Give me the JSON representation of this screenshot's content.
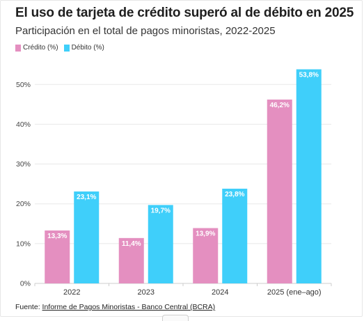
{
  "header": {
    "title": "El uso de tarjeta de crédito superó al de débito en 2025",
    "subtitle": "Participación en el total de pagos minoristas, 2022-2025"
  },
  "source": {
    "prefix": "Fuente: ",
    "link_text": "Informe de Pagos Minoristas - Banco Central (BCRA)"
  },
  "colors": {
    "credito": "#e48fc0",
    "debito": "#3fcffa",
    "grid": "#e8e8e8",
    "axis": "#cccccc",
    "label_text": "#ffffff"
  },
  "chart_data": {
    "type": "bar",
    "title": "El uso de tarjeta de crédito superó al de débito en 2025",
    "subtitle": "Participación en el total de pagos minoristas, 2022-2025",
    "categories": [
      "2022",
      "2023",
      "2024",
      "2025 (ene–ago)"
    ],
    "series": [
      {
        "name": "Crédito (%)",
        "values": [
          13.3,
          11.4,
          13.9,
          46.2
        ],
        "labels": [
          "13,3%",
          "11,4%",
          "13,9%",
          "46,2%"
        ]
      },
      {
        "name": "Débito (%)",
        "values": [
          23.1,
          19.7,
          23.8,
          53.8
        ],
        "labels": [
          "23,1%",
          "19,7%",
          "23,8%",
          "53,8%"
        ]
      }
    ],
    "yticks": [
      0,
      10,
      20,
      30,
      40,
      50
    ],
    "ytick_labels": [
      "0%",
      "10%",
      "20%",
      "30%",
      "40%",
      "50%"
    ],
    "ylim": [
      0,
      55
    ],
    "xlabel": "",
    "ylabel": "",
    "grid": true,
    "legend_position": "top-left"
  }
}
